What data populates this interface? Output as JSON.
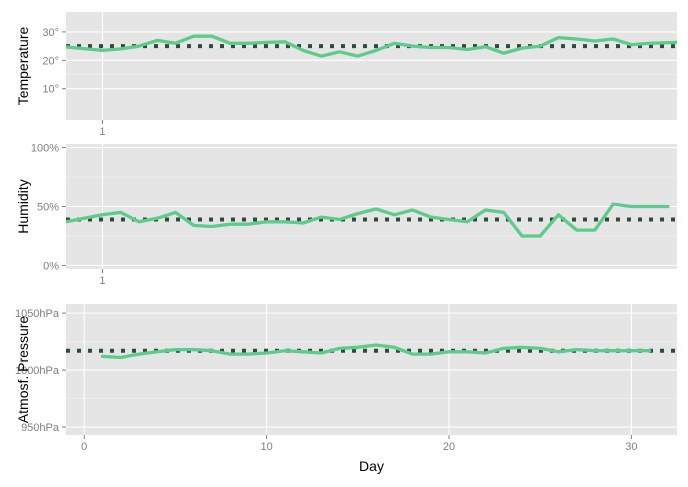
{
  "colors": {
    "panel_bg": "#e5e5e5",
    "grid_major": "#ffffff",
    "series_line": "#5ccb8c",
    "mean_dots": "#2e4a3c"
  },
  "chart_data": [
    {
      "type": "line",
      "ylabel": "Temperature",
      "grid": true,
      "ylim": [
        -1,
        37
      ],
      "yticks": [
        10,
        20,
        30
      ],
      "ytick_labels": [
        "10°",
        "20°",
        "30°"
      ],
      "xticks": [
        1
      ],
      "xtick_labels": [
        "1"
      ],
      "x": [
        -2.3,
        1,
        2,
        3,
        4,
        5,
        6,
        7,
        8,
        9,
        10,
        11,
        12,
        13,
        14,
        15,
        16,
        17,
        18,
        19,
        20,
        21,
        22,
        23,
        24,
        25,
        26,
        27,
        28,
        29,
        30,
        31,
        32.5
      ],
      "series": [
        {
          "values": [
            25.5,
            23.5,
            24,
            25,
            27,
            26,
            28.5,
            28.5,
            26,
            26,
            26.3,
            26.5,
            23.5,
            21.5,
            23,
            21.5,
            23.5,
            26,
            25,
            24.5,
            24.5,
            23.8,
            24.8,
            22.5,
            24.3,
            25,
            28,
            27.5,
            26.8,
            27.5,
            25.5,
            26,
            26.3
          ]
        }
      ],
      "mean_line": 25
    },
    {
      "type": "line",
      "ylabel": "Humidity",
      "grid": true,
      "ylim": [
        -0.03,
        1.03
      ],
      "yticks": [
        0,
        0.5,
        1.0
      ],
      "ytick_labels": [
        "0%",
        "50%",
        "100%"
      ],
      "xticks": [
        1
      ],
      "xtick_labels": [
        "1"
      ],
      "x": [
        -1,
        0,
        1,
        2,
        3,
        4,
        5,
        6,
        7,
        8,
        9,
        10,
        11,
        12,
        13,
        14,
        15,
        16,
        17,
        18,
        19,
        20,
        21,
        22,
        23,
        24,
        25,
        26,
        27,
        28,
        29,
        30,
        31,
        32
      ],
      "series": [
        {
          "values": [
            0.37,
            0.4,
            0.43,
            0.45,
            0.37,
            0.4,
            0.45,
            0.34,
            0.33,
            0.35,
            0.35,
            0.37,
            0.37,
            0.36,
            0.41,
            0.39,
            0.44,
            0.48,
            0.43,
            0.47,
            0.41,
            0.39,
            0.37,
            0.47,
            0.45,
            0.25,
            0.25,
            0.43,
            0.3,
            0.3,
            0.52,
            0.5,
            0.5,
            0.5
          ]
        }
      ],
      "mean_line": 0.39
    },
    {
      "type": "line",
      "ylabel": "Atmosf. Pressure",
      "xlabel": "Day",
      "grid": true,
      "ylim": [
        943,
        1058
      ],
      "yticks": [
        950,
        1000,
        1050
      ],
      "ytick_labels": [
        "950hPa",
        "1000hPa",
        "1050hPa"
      ],
      "xlim": [
        -1,
        32.5
      ],
      "xticks": [
        0,
        10,
        20,
        30
      ],
      "xtick_labels": [
        "0",
        "10",
        "20",
        "30"
      ],
      "x": [
        1,
        2,
        3,
        4,
        5,
        6,
        7,
        8,
        9,
        10,
        11,
        12,
        13,
        14,
        15,
        16,
        17,
        18,
        19,
        20,
        21,
        22,
        23,
        24,
        25,
        26,
        27,
        28,
        29,
        30,
        31
      ],
      "series": [
        {
          "values": [
            1012,
            1011,
            1014,
            1016,
            1018,
            1018,
            1017,
            1014,
            1014,
            1015,
            1017,
            1016,
            1015,
            1019,
            1020,
            1022,
            1020,
            1014,
            1014,
            1016,
            1016,
            1015,
            1019,
            1020,
            1019,
            1016,
            1018,
            1017,
            1017,
            1017,
            1017
          ]
        }
      ],
      "mean_line": 1017
    }
  ]
}
